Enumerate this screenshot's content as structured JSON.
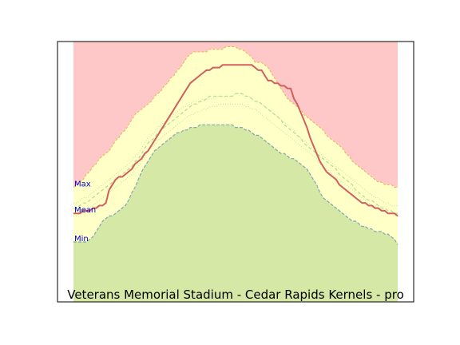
{
  "chart_data": {
    "type": "area",
    "title": "Veterans Memorial Stadium - Cedar Rapids Kernels - pro",
    "xlabel": "",
    "ylabel": "",
    "grid": false,
    "ylim": [
      0,
      100
    ],
    "x": [
      0,
      1,
      2,
      3,
      4,
      5,
      6,
      7,
      8,
      9,
      10,
      11,
      12,
      13,
      14,
      15,
      16,
      17,
      18,
      19,
      20,
      21,
      22,
      23,
      24,
      25,
      26,
      27,
      28,
      29,
      30,
      31,
      32,
      33,
      34,
      35,
      36,
      37,
      38,
      39,
      40,
      41,
      42,
      43,
      44,
      45,
      46,
      47,
      48,
      49,
      50,
      51,
      52,
      53,
      54,
      55,
      56,
      57,
      58,
      59,
      60,
      61,
      62,
      63,
      64,
      65,
      66,
      67,
      68,
      69,
      70,
      71,
      72,
      73,
      74,
      75,
      76,
      77,
      78,
      79,
      80,
      81,
      82,
      83,
      84,
      85,
      86,
      87,
      88,
      89,
      90,
      91,
      92,
      93,
      94,
      95,
      96,
      97,
      98,
      99,
      100
    ],
    "series": [
      {
        "name": "Max",
        "role": "upper band",
        "values": [
          44,
          45,
          46,
          47,
          49,
          50,
          52,
          53,
          55,
          56,
          57,
          58,
          60,
          62,
          63,
          65,
          66,
          68,
          70,
          72,
          73,
          74,
          75,
          76,
          77,
          79,
          80,
          81,
          83,
          84,
          86,
          87,
          89,
          90,
          92,
          94,
          95,
          96,
          96,
          96,
          96,
          96,
          97,
          97,
          97,
          97,
          97,
          98,
          98,
          98,
          98,
          97,
          97,
          96,
          95,
          94,
          92,
          92,
          92,
          91,
          90,
          88,
          86,
          84,
          82,
          80,
          78,
          77,
          76,
          75,
          74,
          72,
          71,
          70,
          69,
          68,
          67,
          66,
          64,
          63,
          62,
          61,
          60,
          59,
          57,
          56,
          54,
          53,
          52,
          51,
          50,
          49,
          48,
          47,
          46,
          46,
          45,
          45,
          45,
          44,
          44
        ]
      },
      {
        "name": "Mean",
        "role": "solid line",
        "values": [
          34,
          34,
          34,
          35,
          35,
          35,
          36,
          36,
          37,
          37,
          38,
          43,
          45,
          47,
          48,
          48,
          49,
          50,
          51,
          53,
          54,
          55,
          57,
          58,
          60,
          62,
          64,
          66,
          68,
          70,
          72,
          74,
          76,
          78,
          80,
          82,
          84,
          85,
          86,
          87,
          88,
          89,
          89,
          90,
          90,
          90,
          91,
          91,
          91,
          91,
          91,
          91,
          91,
          91,
          91,
          91,
          90,
          89,
          89,
          87,
          85,
          85,
          84,
          84,
          83,
          83,
          82,
          82,
          78,
          76,
          73,
          70,
          67,
          63,
          60,
          57,
          54,
          52,
          50,
          49,
          48,
          47,
          45,
          44,
          43,
          42,
          41,
          40,
          39,
          38,
          38,
          37,
          37,
          36,
          36,
          35,
          35,
          34,
          34,
          34,
          33
        ]
      },
      {
        "name": "Min",
        "role": "lower band",
        "values": [
          23,
          23,
          23,
          23,
          23,
          24,
          25,
          27,
          29,
          31,
          32,
          33,
          33,
          34,
          35,
          36,
          37,
          39,
          42,
          44,
          47,
          50,
          52,
          54,
          56,
          58,
          59,
          60,
          61,
          62,
          63,
          64,
          65,
          65,
          66,
          66,
          67,
          67,
          67,
          68,
          68,
          68,
          68,
          68,
          68,
          68,
          68,
          68,
          68,
          68,
          67,
          67,
          67,
          66,
          66,
          65,
          64,
          64,
          63,
          62,
          61,
          60,
          59,
          58,
          57,
          57,
          56,
          55,
          55,
          54,
          53,
          52,
          51,
          49,
          47,
          45,
          42,
          40,
          39,
          38,
          37,
          36,
          35,
          34,
          33,
          32,
          31,
          31,
          30,
          29,
          29,
          28,
          28,
          27,
          27,
          27,
          26,
          26,
          25,
          24,
          22
        ]
      },
      {
        "name": "",
        "role": "dashed line",
        "values": [
          36,
          36,
          37,
          38,
          38,
          39,
          40,
          41,
          42,
          43,
          44,
          45,
          46,
          47,
          48,
          49,
          50,
          51,
          52,
          54,
          55,
          57,
          59,
          61,
          62,
          63,
          65,
          66,
          67,
          68,
          69,
          70,
          71,
          72,
          73,
          74,
          75,
          76,
          76,
          77,
          77,
          78,
          79,
          79,
          79,
          79,
          79,
          79,
          79,
          79,
          80,
          80,
          80,
          79,
          79,
          78,
          77,
          77,
          76,
          75,
          74,
          73,
          72,
          71,
          70,
          68,
          67,
          66,
          65,
          64,
          63,
          61,
          60,
          59,
          58,
          57,
          56,
          55,
          54,
          53,
          52,
          51,
          49,
          48,
          47,
          46,
          45,
          43,
          42,
          41,
          40,
          39,
          39,
          38,
          37,
          36,
          36,
          35,
          35,
          34,
          34
        ]
      },
      {
        "name": "",
        "role": "dotted line upper",
        "values": [
          38,
          38,
          39,
          40,
          40,
          41,
          42,
          43,
          44,
          45,
          46,
          47,
          48,
          49,
          50,
          51,
          52,
          53,
          54,
          56,
          57,
          59,
          61,
          63,
          64,
          65,
          67,
          68,
          69,
          70,
          71,
          72,
          73,
          74,
          75,
          75,
          76,
          77,
          77,
          77,
          78,
          78,
          78,
          78,
          79,
          79,
          79,
          79,
          79,
          79,
          80,
          80,
          80,
          79,
          79,
          78,
          77,
          77,
          76,
          75,
          74,
          73,
          72,
          71,
          70,
          69,
          68,
          67,
          66,
          64,
          63,
          62,
          61,
          60,
          59,
          58,
          57,
          56,
          55,
          54,
          53,
          52,
          51,
          50,
          49,
          48,
          47,
          46,
          45,
          44,
          43,
          42,
          41,
          40,
          40,
          39,
          38,
          38,
          37,
          37,
          37
        ]
      },
      {
        "name": "",
        "role": "dotted line lower",
        "values": [
          33,
          33,
          34,
          35,
          35,
          36,
          37,
          38,
          39,
          40,
          41,
          42,
          43,
          44,
          45,
          46,
          47,
          48,
          49,
          51,
          52,
          54,
          56,
          58,
          59,
          60,
          62,
          63,
          64,
          65,
          66,
          67,
          68,
          69,
          70,
          71,
          72,
          72,
          73,
          73,
          74,
          74,
          75,
          75,
          75,
          76,
          76,
          76,
          76,
          76,
          76,
          76,
          76,
          75,
          75,
          74,
          74,
          73,
          72,
          71,
          70,
          69,
          68,
          67,
          66,
          65,
          64,
          63,
          62,
          61,
          60,
          59,
          58,
          57,
          56,
          55,
          53,
          52,
          51,
          50,
          49,
          48,
          47,
          46,
          45,
          44,
          43,
          42,
          41,
          40,
          39,
          38,
          37,
          37,
          36,
          35,
          35,
          34,
          34,
          33,
          33
        ]
      }
    ],
    "colors": {
      "max_fill": "#ffc8c8",
      "band_fill": "#ffffc8",
      "min_fill": "#d5e8a5",
      "mean_line": "#d06060",
      "dashed_line": "#b8dc98",
      "dotted_line": "#c0e0a0",
      "max_edge": "#f0b050",
      "min_edge": "#7aa9b0",
      "label_color": "#0000cc"
    }
  }
}
